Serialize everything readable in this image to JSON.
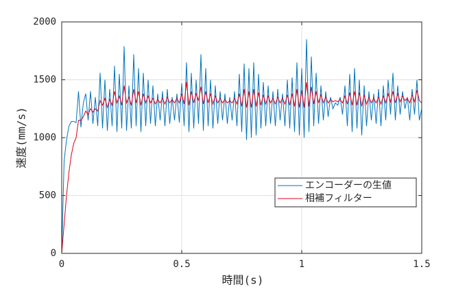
{
  "chart_data": {
    "type": "line",
    "xlabel": "時間(s)",
    "ylabel": "速度(mm/s)",
    "x": [
      0,
      0.01,
      0.02,
      0.03,
      0.04,
      0.05,
      0.06,
      0.07,
      0.08,
      0.09,
      0.1,
      0.11,
      0.12,
      0.13,
      0.14,
      0.15,
      0.16,
      0.17,
      0.18,
      0.19,
      0.2,
      0.21,
      0.22,
      0.23,
      0.24,
      0.25,
      0.26,
      0.27,
      0.28,
      0.29,
      0.3,
      0.31,
      0.32,
      0.33,
      0.34,
      0.35,
      0.36,
      0.37,
      0.38,
      0.39,
      0.4,
      0.41,
      0.42,
      0.43,
      0.44,
      0.45,
      0.46,
      0.47,
      0.48,
      0.49,
      0.5,
      0.51,
      0.52,
      0.53,
      0.54,
      0.55,
      0.56,
      0.57,
      0.58,
      0.59,
      0.6,
      0.61,
      0.62,
      0.63,
      0.64,
      0.65,
      0.66,
      0.67,
      0.68,
      0.69,
      0.7,
      0.71,
      0.72,
      0.73,
      0.74,
      0.75,
      0.76,
      0.77,
      0.78,
      0.79,
      0.8,
      0.81,
      0.82,
      0.83,
      0.84,
      0.85,
      0.86,
      0.87,
      0.88,
      0.89,
      0.9,
      0.91,
      0.92,
      0.93,
      0.94,
      0.95,
      0.96,
      0.97,
      0.98,
      0.99,
      1,
      1.01,
      1.02,
      1.03,
      1.04,
      1.05,
      1.06,
      1.07,
      1.08,
      1.09,
      1.1,
      1.11,
      1.12,
      1.13,
      1.14,
      1.15,
      1.16,
      1.17,
      1.18,
      1.19,
      1.2,
      1.21,
      1.22,
      1.23,
      1.24,
      1.25,
      1.26,
      1.27,
      1.28,
      1.29,
      1.3,
      1.31,
      1.32,
      1.33,
      1.34,
      1.35,
      1.36,
      1.37,
      1.38,
      1.39,
      1.4,
      1.41,
      1.42,
      1.43,
      1.44,
      1.45,
      1.46,
      1.47,
      1.48,
      1.49,
      1.5
    ],
    "series": [
      {
        "name": "エンコーダーの生値",
        "color": "#0072bd",
        "values": [
          0,
          800,
          980,
          1100,
          1140,
          1140,
          1130,
          1400,
          1090,
          1300,
          1380,
          1150,
          1400,
          1120,
          1350,
          1100,
          1560,
          1080,
          1500,
          1060,
          1420,
          1100,
          1620,
          1050,
          1550,
          1080,
          1790,
          1060,
          1450,
          1080,
          1720,
          1100,
          1600,
          1050,
          1560,
          1100,
          1500,
          1120,
          1450,
          1100,
          1380,
          1150,
          1400,
          1100,
          1420,
          1120,
          1350,
          1150,
          1380,
          1130,
          1470,
          1100,
          1650,
          1050,
          1560,
          1080,
          1500,
          1120,
          1720,
          1060,
          1600,
          1100,
          1500,
          1080,
          1450,
          1120,
          1400,
          1150,
          1380,
          1120,
          1350,
          1150,
          1400,
          1100,
          1550,
          1050,
          1640,
          980,
          1600,
          1000,
          1650,
          1020,
          1550,
          1080,
          1480,
          1100,
          1450,
          1120,
          1400,
          1100,
          1420,
          1150,
          1380,
          1100,
          1500,
          1080,
          1520,
          1050,
          1650,
          1020,
          1600,
          1000,
          1850,
          1050,
          1700,
          1100,
          1560,
          1120,
          1450,
          1150,
          1400,
          1180,
          1350,
          1250,
          1300,
          1280,
          1350,
          1200,
          1450,
          1100,
          1550,
          1050,
          1600,
          1080,
          1500,
          1020,
          1450,
          1100,
          1400,
          1150,
          1380,
          1120,
          1420,
          1100,
          1450,
          1150,
          1500,
          1200,
          1560,
          1150,
          1450,
          1200,
          1400,
          1250,
          1350,
          1150,
          1420,
          1200,
          1500,
          1150,
          1250
        ]
      },
      {
        "name": "相補フィルター",
        "color": "#d9001b",
        "values": [
          0,
          250,
          500,
          700,
          850,
          950,
          1000,
          1150,
          1150,
          1180,
          1230,
          1200,
          1250,
          1220,
          1250,
          1230,
          1320,
          1280,
          1340,
          1260,
          1330,
          1280,
          1400,
          1300,
          1360,
          1280,
          1450,
          1300,
          1350,
          1280,
          1420,
          1300,
          1400,
          1280,
          1380,
          1300,
          1360,
          1300,
          1340,
          1290,
          1330,
          1300,
          1340,
          1290,
          1350,
          1300,
          1330,
          1300,
          1340,
          1300,
          1380,
          1290,
          1480,
          1280,
          1400,
          1300,
          1380,
          1320,
          1440,
          1290,
          1400,
          1300,
          1380,
          1290,
          1360,
          1300,
          1340,
          1300,
          1330,
          1300,
          1320,
          1300,
          1340,
          1290,
          1380,
          1270,
          1420,
          1260,
          1400,
          1260,
          1420,
          1270,
          1390,
          1280,
          1370,
          1290,
          1360,
          1300,
          1340,
          1290,
          1350,
          1300,
          1340,
          1290,
          1370,
          1280,
          1380,
          1270,
          1420,
          1260,
          1410,
          1260,
          1480,
          1270,
          1440,
          1290,
          1400,
          1300,
          1370,
          1300,
          1350,
          1300,
          1330,
          1310,
          1320,
          1310,
          1330,
          1300,
          1360,
          1290,
          1390,
          1280,
          1400,
          1280,
          1390,
          1270,
          1370,
          1290,
          1350,
          1300,
          1340,
          1300,
          1350,
          1290,
          1360,
          1300,
          1380,
          1310,
          1400,
          1300,
          1380,
          1310,
          1360,
          1320,
          1340,
          1300,
          1370,
          1310,
          1410,
          1320,
          1300
        ]
      }
    ],
    "xlim": [
      0,
      1.5
    ],
    "xticks": [
      0,
      0.5,
      1,
      1.5
    ],
    "ylim": [
      0,
      2000
    ],
    "yticks": [
      0,
      500,
      1000,
      1500,
      2000
    ],
    "grid": true,
    "legend": "lower right"
  }
}
